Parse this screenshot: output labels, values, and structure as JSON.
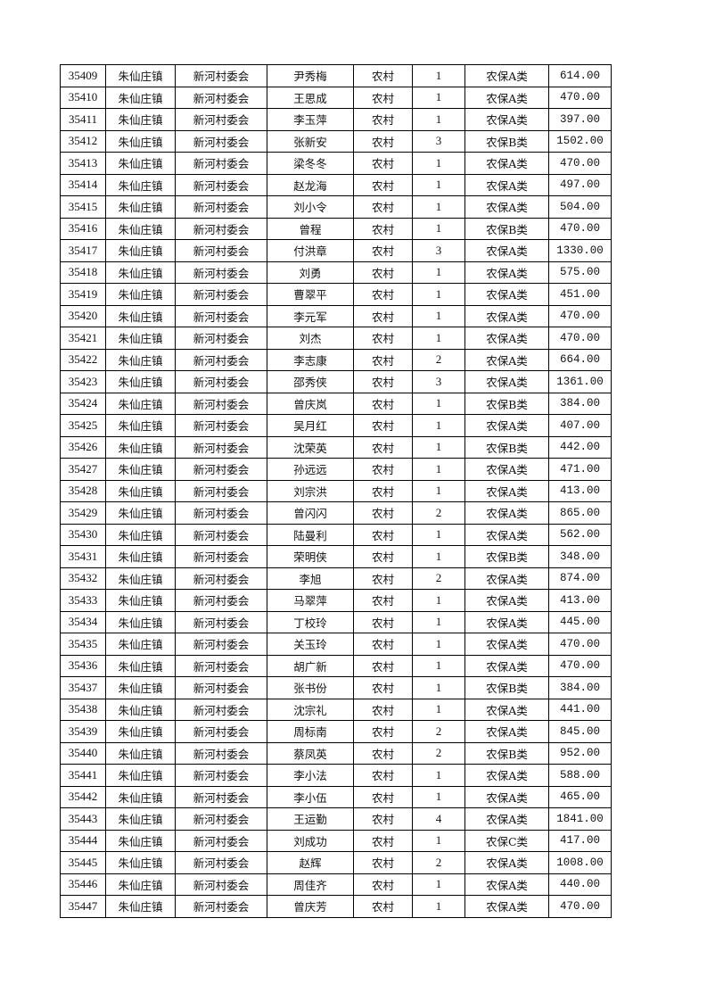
{
  "table": {
    "rows": [
      [
        "35409",
        "朱仙庄镇",
        "新河村委会",
        "尹秀梅",
        "农村",
        "1",
        "农保A类",
        "614.00"
      ],
      [
        "35410",
        "朱仙庄镇",
        "新河村委会",
        "王思成",
        "农村",
        "1",
        "农保A类",
        "470.00"
      ],
      [
        "35411",
        "朱仙庄镇",
        "新河村委会",
        "李玉萍",
        "农村",
        "1",
        "农保A类",
        "397.00"
      ],
      [
        "35412",
        "朱仙庄镇",
        "新河村委会",
        "张新安",
        "农村",
        "3",
        "农保B类",
        "1502.00"
      ],
      [
        "35413",
        "朱仙庄镇",
        "新河村委会",
        "梁冬冬",
        "农村",
        "1",
        "农保A类",
        "470.00"
      ],
      [
        "35414",
        "朱仙庄镇",
        "新河村委会",
        "赵龙海",
        "农村",
        "1",
        "农保A类",
        "497.00"
      ],
      [
        "35415",
        "朱仙庄镇",
        "新河村委会",
        "刘小令",
        "农村",
        "1",
        "农保A类",
        "504.00"
      ],
      [
        "35416",
        "朱仙庄镇",
        "新河村委会",
        "曾程",
        "农村",
        "1",
        "农保B类",
        "470.00"
      ],
      [
        "35417",
        "朱仙庄镇",
        "新河村委会",
        "付洪章",
        "农村",
        "3",
        "农保A类",
        "1330.00"
      ],
      [
        "35418",
        "朱仙庄镇",
        "新河村委会",
        "刘勇",
        "农村",
        "1",
        "农保A类",
        "575.00"
      ],
      [
        "35419",
        "朱仙庄镇",
        "新河村委会",
        "曹翠平",
        "农村",
        "1",
        "农保A类",
        "451.00"
      ],
      [
        "35420",
        "朱仙庄镇",
        "新河村委会",
        "李元军",
        "农村",
        "1",
        "农保A类",
        "470.00"
      ],
      [
        "35421",
        "朱仙庄镇",
        "新河村委会",
        "刘杰",
        "农村",
        "1",
        "农保A类",
        "470.00"
      ],
      [
        "35422",
        "朱仙庄镇",
        "新河村委会",
        "李志康",
        "农村",
        "2",
        "农保A类",
        "664.00"
      ],
      [
        "35423",
        "朱仙庄镇",
        "新河村委会",
        "邵秀侠",
        "农村",
        "3",
        "农保A类",
        "1361.00"
      ],
      [
        "35424",
        "朱仙庄镇",
        "新河村委会",
        "曾庆岚",
        "农村",
        "1",
        "农保B类",
        "384.00"
      ],
      [
        "35425",
        "朱仙庄镇",
        "新河村委会",
        "吴月红",
        "农村",
        "1",
        "农保A类",
        "407.00"
      ],
      [
        "35426",
        "朱仙庄镇",
        "新河村委会",
        "沈荣英",
        "农村",
        "1",
        "农保B类",
        "442.00"
      ],
      [
        "35427",
        "朱仙庄镇",
        "新河村委会",
        "孙远远",
        "农村",
        "1",
        "农保A类",
        "471.00"
      ],
      [
        "35428",
        "朱仙庄镇",
        "新河村委会",
        "刘宗洪",
        "农村",
        "1",
        "农保A类",
        "413.00"
      ],
      [
        "35429",
        "朱仙庄镇",
        "新河村委会",
        "曾闪闪",
        "农村",
        "2",
        "农保A类",
        "865.00"
      ],
      [
        "35430",
        "朱仙庄镇",
        "新河村委会",
        "陆曼利",
        "农村",
        "1",
        "农保A类",
        "562.00"
      ],
      [
        "35431",
        "朱仙庄镇",
        "新河村委会",
        "荣明侠",
        "农村",
        "1",
        "农保B类",
        "348.00"
      ],
      [
        "35432",
        "朱仙庄镇",
        "新河村委会",
        "李旭",
        "农村",
        "2",
        "农保A类",
        "874.00"
      ],
      [
        "35433",
        "朱仙庄镇",
        "新河村委会",
        "马翠萍",
        "农村",
        "1",
        "农保A类",
        "413.00"
      ],
      [
        "35434",
        "朱仙庄镇",
        "新河村委会",
        "丁校玲",
        "农村",
        "1",
        "农保A类",
        "445.00"
      ],
      [
        "35435",
        "朱仙庄镇",
        "新河村委会",
        "关玉玲",
        "农村",
        "1",
        "农保A类",
        "470.00"
      ],
      [
        "35436",
        "朱仙庄镇",
        "新河村委会",
        "胡广新",
        "农村",
        "1",
        "农保A类",
        "470.00"
      ],
      [
        "35437",
        "朱仙庄镇",
        "新河村委会",
        "张书份",
        "农村",
        "1",
        "农保B类",
        "384.00"
      ],
      [
        "35438",
        "朱仙庄镇",
        "新河村委会",
        "沈宗礼",
        "农村",
        "1",
        "农保A类",
        "441.00"
      ],
      [
        "35439",
        "朱仙庄镇",
        "新河村委会",
        "周标南",
        "农村",
        "2",
        "农保A类",
        "845.00"
      ],
      [
        "35440",
        "朱仙庄镇",
        "新河村委会",
        "蔡凤英",
        "农村",
        "2",
        "农保B类",
        "952.00"
      ],
      [
        "35441",
        "朱仙庄镇",
        "新河村委会",
        "李小法",
        "农村",
        "1",
        "农保A类",
        "588.00"
      ],
      [
        "35442",
        "朱仙庄镇",
        "新河村委会",
        "李小伍",
        "农村",
        "1",
        "农保A类",
        "465.00"
      ],
      [
        "35443",
        "朱仙庄镇",
        "新河村委会",
        "王运勤",
        "农村",
        "4",
        "农保A类",
        "1841.00"
      ],
      [
        "35444",
        "朱仙庄镇",
        "新河村委会",
        "刘成功",
        "农村",
        "1",
        "农保C类",
        "417.00"
      ],
      [
        "35445",
        "朱仙庄镇",
        "新河村委会",
        "赵辉",
        "农村",
        "2",
        "农保A类",
        "1008.00"
      ],
      [
        "35446",
        "朱仙庄镇",
        "新河村委会",
        "周佳齐",
        "农村",
        "1",
        "农保A类",
        "440.00"
      ],
      [
        "35447",
        "朱仙庄镇",
        "新河村委会",
        "曾庆芳",
        "农村",
        "1",
        "农保A类",
        "470.00"
      ]
    ]
  }
}
